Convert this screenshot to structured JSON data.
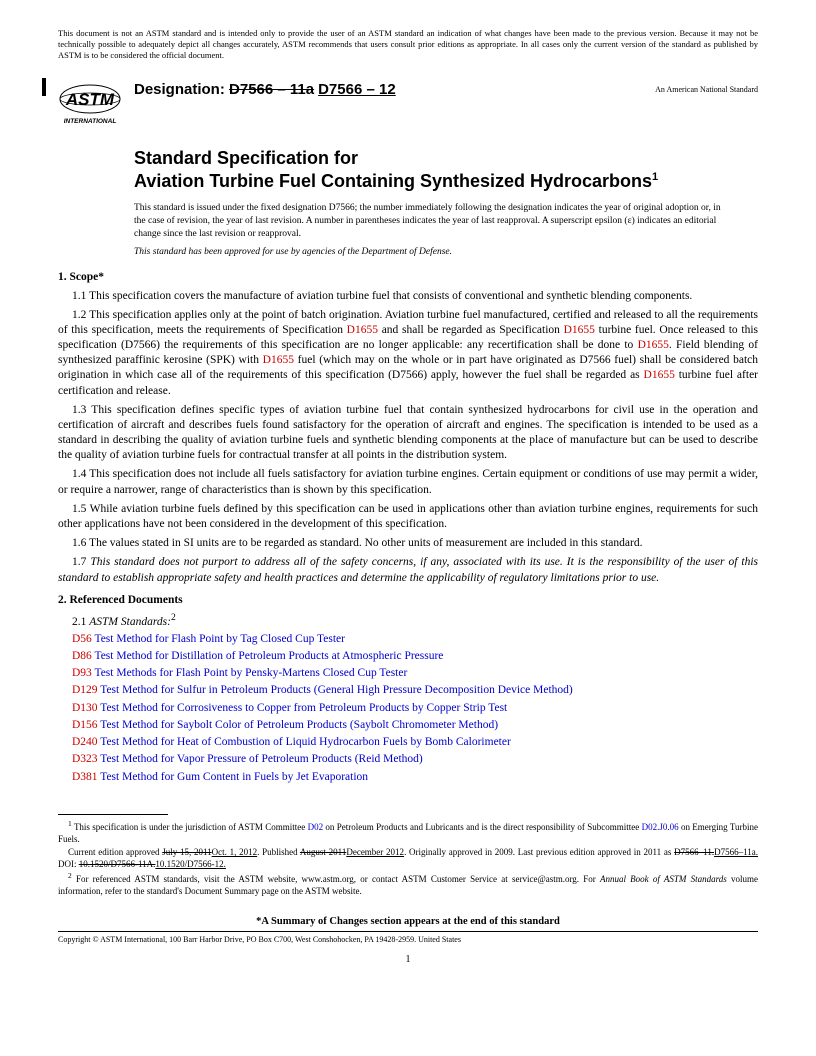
{
  "disclaimer": "This document is not an ASTM standard and is intended only to provide the user of an ASTM standard an indication of what changes have been made to the previous version. Because it may not be technically possible to adequately depict all changes accurately, ASTM recommends that users consult prior editions as appropriate. In all cases only the current version of the standard as published by ASTM is to be considered the official document.",
  "logo_text_top": "ASTM",
  "logo_text_bottom": "INTERNATIONAL",
  "designation_label": "Designation: ",
  "designation_old": "D7566 – 11a",
  "designation_new": "D7566 – 12",
  "ans": "An American National Standard",
  "title_pre": "Standard Specification for",
  "title_main": "Aviation Turbine Fuel Containing Synthesized Hydrocarbons",
  "title_sup": "1",
  "issuance": "This standard is issued under the fixed designation D7566; the number immediately following the designation indicates the year of original adoption or, in the case of revision, the year of last revision. A number in parentheses indicates the year of last reapproval. A superscript epsilon (ε) indicates an editorial change since the last revision or reapproval.",
  "dod": "This standard has been approved for use by agencies of the Department of Defense.",
  "s1_head": "1.  Scope*",
  "s1_1": "1.1  This specification covers the manufacture of aviation turbine fuel that consists of conventional and synthetic blending components.",
  "s1_2a": "1.2  This specification applies only at the point of batch origination. Aviation turbine fuel manufactured, certified and released to all the requirements of this specification, meets the requirements of Specification ",
  "s1_2b": " and shall be regarded as Specification ",
  "s1_2c": " turbine fuel. Once released to this specification (D7566) the requirements of this specification are no longer applicable: any recertification shall be done to ",
  "s1_2d": ". Field blending of synthesized paraffinic kerosine (SPK) with ",
  "s1_2e": " fuel (which may on the whole or in part have originated as D7566 fuel) shall be considered batch origination in which case all of the requirements of this specification (D7566) apply, however the fuel shall be regarded as ",
  "s1_2f": " turbine fuel after certification and release.",
  "ref_d1655": "D1655",
  "s1_3": "1.3  This specification defines specific types of aviation turbine fuel that contain synthesized hydrocarbons for civil use in the operation and certification of aircraft and describes fuels found satisfactory for the operation of aircraft and engines. The specification is intended to be used as a standard in describing the quality of aviation turbine fuels and synthetic blending components at the place of manufacture but can be used to describe the quality of aviation turbine fuels for contractual transfer at all points in the distribution system.",
  "s1_4": "1.4  This specification does not include all fuels satisfactory for aviation turbine engines. Certain equipment or conditions of use may permit a wider, or require a narrower, range of characteristics than is shown by this specification.",
  "s1_5": "1.5  While aviation turbine fuels defined by this specification can be used in applications other than aviation turbine engines, requirements for such other applications have not been considered in the development of this specification.",
  "s1_6": "1.6  The values stated in SI units are to be regarded as standard. No other units of measurement are included in this standard.",
  "s1_7": "1.7  This standard does not purport to address all of the safety concerns, if any, associated with its use. It is the responsibility of the user of this standard to establish appropriate safety and health practices and determine the applicability of regulatory limitations prior to use.",
  "s2_head": "2.  Referenced Documents",
  "s2_1_pre": "2.1  ",
  "s2_1_it": "ASTM Standards:",
  "s2_1_sup": "2",
  "refs": [
    {
      "code": "D56",
      "title": " Test Method for Flash Point by Tag Closed Cup Tester"
    },
    {
      "code": "D86",
      "title": " Test Method for Distillation of Petroleum Products at Atmospheric Pressure"
    },
    {
      "code": "D93",
      "title": " Test Methods for Flash Point by Pensky-Martens Closed Cup Tester"
    },
    {
      "code": "D129",
      "title": " Test Method for Sulfur in Petroleum Products (General High Pressure Decomposition Device Method)"
    },
    {
      "code": "D130",
      "title": " Test Method for Corrosiveness to Copper from Petroleum Products by Copper Strip Test"
    },
    {
      "code": "D156",
      "title": " Test Method for Saybolt Color of Petroleum Products (Saybolt Chromometer Method)"
    },
    {
      "code": "D240",
      "title": " Test Method for Heat of Combustion of Liquid Hydrocarbon Fuels by Bomb Calorimeter"
    },
    {
      "code": "D323",
      "title": " Test Method for Vapor Pressure of Petroleum Products (Reid Method)"
    },
    {
      "code": "D381",
      "title": " Test Method for Gum Content in Fuels by Jet Evaporation"
    }
  ],
  "fn1_a": " This specification is under the jurisdiction of ASTM Committee ",
  "fn1_link1": "D02",
  "fn1_b": " on Petroleum Products and Lubricants and is the direct responsibility of Subcommittee ",
  "fn1_link2": "D02.J0.06",
  "fn1_c": " on Emerging Turbine Fuels.",
  "fn1_line2a": "Current edition approved ",
  "fn1_strike1": "July 15, 2011",
  "fn1_new1": "Oct. 1, 2012",
  "fn1_line2b": ". Published ",
  "fn1_strike2": "August 2011",
  "fn1_new2": "December 2012",
  "fn1_line2c": ". Originally approved in 2009. Last previous edition approved in 2011 as ",
  "fn1_strike3": "D7566–11.",
  "fn1_new3": "D7566–11a.",
  "fn1_line2d": " DOI: ",
  "fn1_strike4": "10.1520/D7566-11A.",
  "fn1_new4": "10.1520/D7566-12.",
  "fn2_a": " For referenced ASTM standards, visit the ASTM website, www.astm.org, or contact ASTM Customer Service at service@astm.org. For ",
  "fn2_it": "Annual Book of ASTM Standards",
  "fn2_b": " volume information, refer to the standard's Document Summary page on the ASTM website.",
  "summary": "*A Summary of Changes section appears at the end of this standard",
  "copyright": "Copyright © ASTM International, 100 Barr Harbor Drive, PO Box C700, West Conshohocken, PA 19428-2959. United States",
  "pagenum": "1",
  "colors": {
    "ref_red": "#cc0000",
    "ref_blue": "#0000cc",
    "text": "#000000",
    "bg": "#ffffff"
  }
}
